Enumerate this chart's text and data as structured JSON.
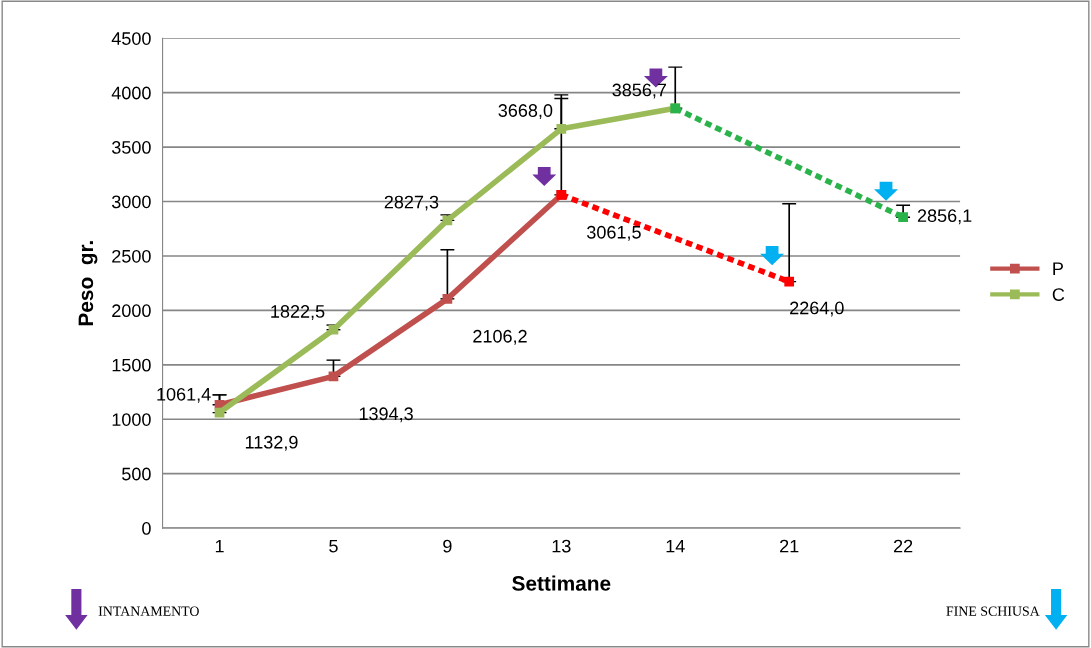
{
  "chart_data": {
    "type": "line",
    "xlabel": "Settimane",
    "ylabel": "Peso  gr.",
    "categories": [
      "1",
      "5",
      "9",
      "13",
      "14",
      "21",
      "22"
    ],
    "series": [
      {
        "name": "P",
        "color": "#c0504d",
        "line_style": "solid",
        "values": [
          1132.9,
          1394.3,
          2106.2,
          3061.5,
          null,
          null,
          null
        ],
        "value_labels": [
          "1132,9",
          "1394,3",
          "2106,2",
          "3061,5",
          null,
          null,
          null
        ],
        "errors": [
          [
            1132.9,
            1224
          ],
          [
            1394.3,
            1543
          ],
          [
            2106.2,
            2557
          ],
          [
            3061.5,
            3946
          ],
          null,
          null,
          null
        ]
      },
      {
        "color": "#ff0000",
        "line_style": "dotted",
        "values": [
          null,
          null,
          null,
          3061.5,
          null,
          2264.0,
          null
        ],
        "value_labels": [
          null,
          null,
          null,
          null,
          null,
          "2264,0",
          null
        ],
        "errors": [
          null,
          null,
          null,
          null,
          null,
          [
            2264.0,
            2979
          ],
          null
        ]
      },
      {
        "name": "C",
        "color": "#9bbb59",
        "line_style": "solid",
        "values": [
          1061.4,
          1822.5,
          2827.3,
          3668.0,
          3856.7,
          null,
          null
        ],
        "value_labels": [
          "1061,4",
          "1822,5",
          "2827,3",
          "3668,0",
          "3856,7",
          null,
          null
        ],
        "errors": [
          [
            1061.4,
            1224
          ],
          [
            1822.5,
            1865
          ],
          [
            2827.3,
            2877
          ],
          [
            3668.0,
            3980
          ],
          [
            3856.7,
            4235
          ],
          null,
          null
        ]
      },
      {
        "color": "#2ab34a",
        "line_style": "dotted",
        "values": [
          null,
          null,
          null,
          null,
          3856.7,
          null,
          2856.1
        ],
        "value_labels": [
          null,
          null,
          null,
          null,
          null,
          null,
          "2856,1"
        ],
        "errors": [
          null,
          null,
          null,
          null,
          null,
          null,
          [
            2856.1,
            2966
          ]
        ]
      }
    ],
    "ylim": [
      0,
      4500
    ],
    "yticks": [
      0,
      500,
      1000,
      1500,
      2000,
      2500,
      3000,
      3500,
      4000,
      4500
    ],
    "grid": "y",
    "legend": "right",
    "marker": "square",
    "annotations": [
      "INTANAMENTO",
      "FINE SCHIUSA"
    ]
  }
}
